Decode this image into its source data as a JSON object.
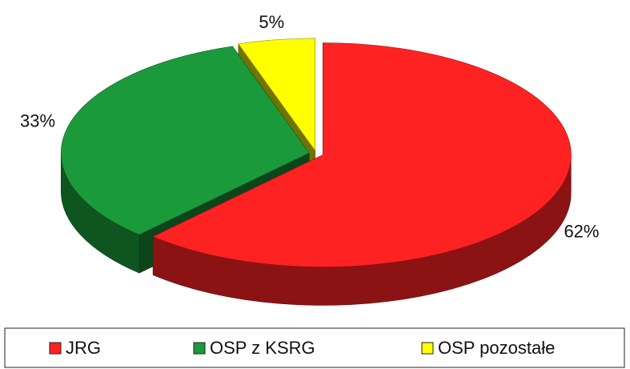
{
  "chart_data": {
    "type": "pie",
    "categories": [
      "JRG",
      "OSP z KSRG",
      "OSP pozostałe"
    ],
    "values": [
      62,
      33,
      5
    ],
    "value_labels": [
      "62%",
      "33%",
      "5%"
    ],
    "colors": [
      "#ff2222",
      "#1a9a3a",
      "#ffff00"
    ],
    "legend": "bottom"
  }
}
